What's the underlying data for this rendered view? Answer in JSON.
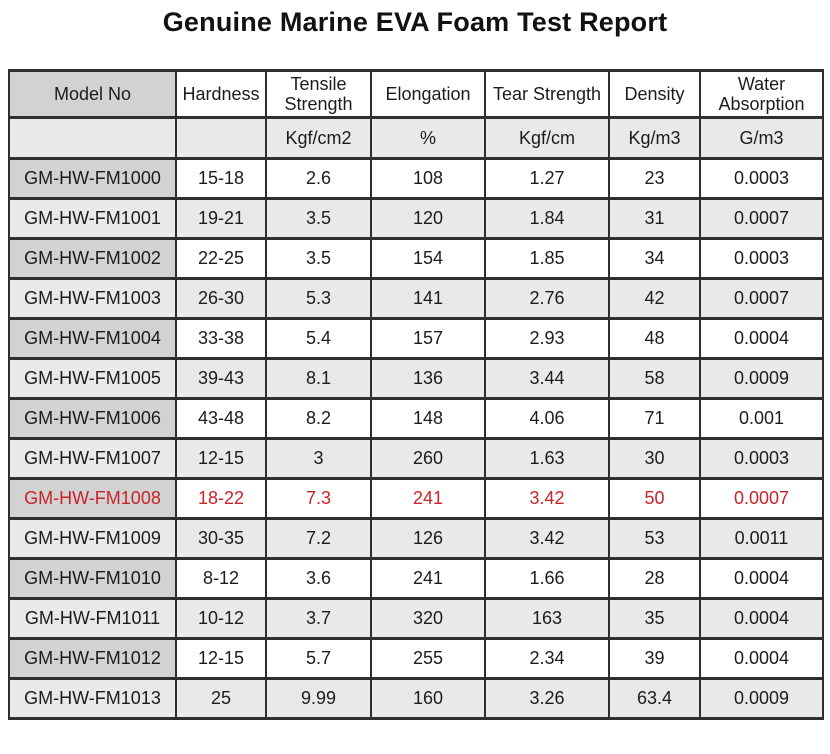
{
  "page": {
    "title": "Genuine Marine EVA Foam Test Report"
  },
  "colors": {
    "highlight_text": "#c9232a",
    "model_column_header_bg": "#d2d2d2",
    "stripe_row_bg": "#e9e9e9",
    "border": "#2e2e2e",
    "text": "#1c1c1c"
  },
  "table": {
    "columns": [
      {
        "label": "Model No",
        "unit": ""
      },
      {
        "label": "Hardness",
        "unit": ""
      },
      {
        "label": "Tensile Strength",
        "unit": "Kgf/cm2"
      },
      {
        "label": "Elongation",
        "unit": "%"
      },
      {
        "label": "Tear Strength",
        "unit": "Kgf/cm"
      },
      {
        "label": "Density",
        "unit": "Kg/m3"
      },
      {
        "label": "Water Absorption",
        "unit": "G/m3"
      }
    ],
    "highlighted_row_index": 8,
    "rows": [
      [
        "GM-HW-FM1000",
        "15-18",
        "2.6",
        "108",
        "1.27",
        "23",
        "0.0003"
      ],
      [
        "GM-HW-FM1001",
        "19-21",
        "3.5",
        "120",
        "1.84",
        "31",
        "0.0007"
      ],
      [
        "GM-HW-FM1002",
        "22-25",
        "3.5",
        "154",
        "1.85",
        "34",
        "0.0003"
      ],
      [
        "GM-HW-FM1003",
        "26-30",
        "5.3",
        "141",
        "2.76",
        "42",
        "0.0007"
      ],
      [
        "GM-HW-FM1004",
        "33-38",
        "5.4",
        "157",
        "2.93",
        "48",
        "0.0004"
      ],
      [
        "GM-HW-FM1005",
        "39-43",
        "8.1",
        "136",
        "3.44",
        "58",
        "0.0009"
      ],
      [
        "GM-HW-FM1006",
        "43-48",
        "8.2",
        "148",
        "4.06",
        "71",
        "0.001"
      ],
      [
        "GM-HW-FM1007",
        "12-15",
        "3",
        "260",
        "1.63",
        "30",
        "0.0003"
      ],
      [
        "GM-HW-FM1008",
        "18-22",
        "7.3",
        "241",
        "3.42",
        "50",
        "0.0007"
      ],
      [
        "GM-HW-FM1009",
        "30-35",
        "7.2",
        "126",
        "3.42",
        "53",
        "0.0011"
      ],
      [
        "GM-HW-FM1010",
        "8-12",
        "3.6",
        "241",
        "1.66",
        "28",
        "0.0004"
      ],
      [
        "GM-HW-FM1011",
        "10-12",
        "3.7",
        "320",
        "163",
        "35",
        "0.0004"
      ],
      [
        "GM-HW-FM1012",
        "12-15",
        "5.7",
        "255",
        "2.34",
        "39",
        "0.0004"
      ],
      [
        "GM-HW-FM1013",
        "25",
        "9.99",
        "160",
        "3.26",
        "63.4",
        "0.0009"
      ]
    ]
  }
}
